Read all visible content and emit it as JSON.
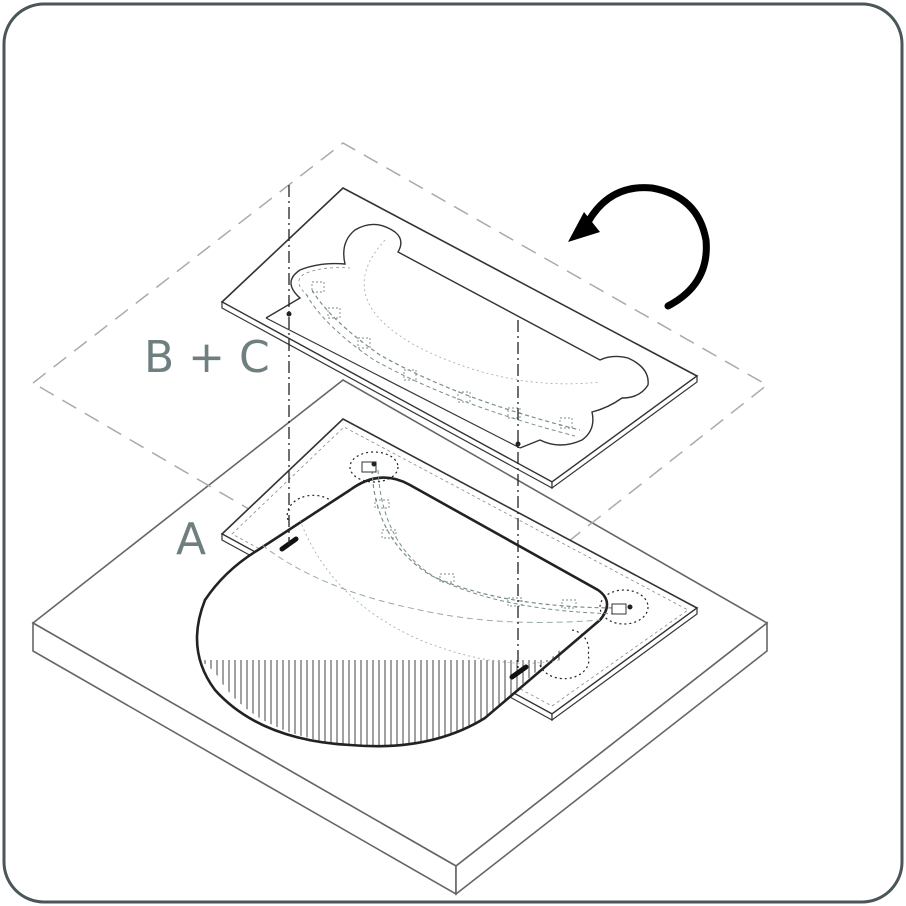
{
  "labels": {
    "layer_bc": "B + C",
    "layer_a": "A"
  },
  "icons": {
    "rotate": "rotate-counterclockwise-arrow-icon"
  },
  "colors": {
    "frame": "#4a565a",
    "line": "#333333",
    "label": "#6f7f80",
    "dashed_guide": "#aaaaaa",
    "stitch": "#7a8c8c"
  }
}
